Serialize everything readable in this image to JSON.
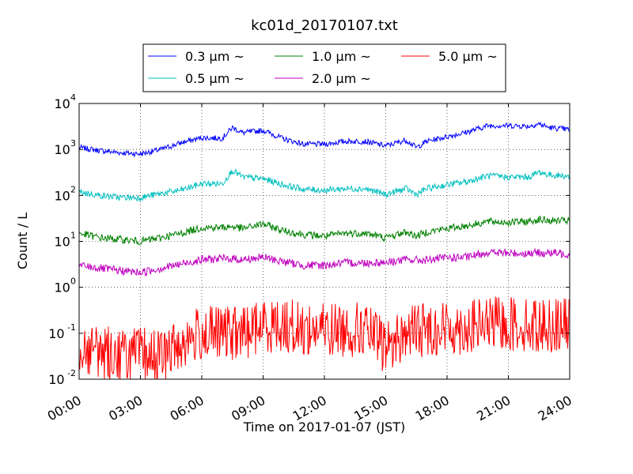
{
  "chart_data": {
    "type": "line",
    "title": "kc01d_20170107.txt",
    "xlabel": "Time on 2017-01-07 (JST)",
    "ylabel": "Count / L",
    "yscale": "log",
    "xlim": [
      "00:00",
      "24:00"
    ],
    "ylim": [
      0.01,
      10000
    ],
    "grid": true,
    "legend_position": "top-center",
    "x_ticks": [
      "00:00",
      "03:00",
      "06:00",
      "09:00",
      "12:00",
      "15:00",
      "18:00",
      "21:00",
      "24:00"
    ],
    "y_ticks": [
      {
        "base": "10",
        "exp": "-2",
        "value": 0.01
      },
      {
        "base": "10",
        "exp": "-1",
        "value": 0.1
      },
      {
        "base": "10",
        "exp": "0",
        "value": 1
      },
      {
        "base": "10",
        "exp": "1",
        "value": 10
      },
      {
        "base": "10",
        "exp": "2",
        "value": 100
      },
      {
        "base": "10",
        "exp": "3",
        "value": 1000
      },
      {
        "base": "10",
        "exp": "4",
        "value": 10000
      }
    ],
    "x": [
      "00:00",
      "01:00",
      "02:00",
      "03:00",
      "04:00",
      "05:00",
      "06:00",
      "07:00",
      "07:30",
      "08:00",
      "09:00",
      "10:00",
      "11:00",
      "12:00",
      "13:00",
      "14:00",
      "15:00",
      "16:00",
      "16:30",
      "17:00",
      "18:00",
      "19:00",
      "20:00",
      "21:00",
      "22:00",
      "22:30",
      "23:00",
      "24:00"
    ],
    "series": [
      {
        "name": "0.3 μm ~",
        "color": "#0000ff",
        "noise": 0.06,
        "values": [
          1100,
          950,
          850,
          800,
          1000,
          1400,
          1800,
          1750,
          3000,
          2300,
          2600,
          1700,
          1300,
          1300,
          1500,
          1500,
          1200,
          1600,
          1100,
          1500,
          1900,
          2400,
          3300,
          3300,
          3200,
          3600,
          3000,
          2700
        ]
      },
      {
        "name": "0.5 μm ~",
        "color": "#00bfbf",
        "noise": 0.07,
        "values": [
          120,
          100,
          90,
          90,
          110,
          130,
          180,
          180,
          350,
          250,
          230,
          170,
          135,
          130,
          140,
          140,
          105,
          140,
          105,
          140,
          170,
          200,
          270,
          250,
          250,
          320,
          280,
          260
        ]
      },
      {
        "name": "1.0 μm ~",
        "color": "#008000",
        "noise": 0.08,
        "values": [
          15,
          12,
          11,
          10,
          12,
          15,
          20,
          20,
          21,
          19,
          24,
          17,
          14,
          13,
          15,
          15,
          12,
          16,
          13,
          16,
          19,
          22,
          27,
          26,
          27,
          30,
          28,
          28
        ]
      },
      {
        "name": "2.0 μm ~",
        "color": "#bf00bf",
        "noise": 0.09,
        "values": [
          3,
          2.6,
          2.3,
          2.1,
          2.6,
          3.2,
          4,
          4.2,
          4.2,
          4,
          4.5,
          3.6,
          3,
          3,
          3.4,
          3.4,
          3.5,
          4,
          3.9,
          3.9,
          4.4,
          4.5,
          5.8,
          5.5,
          5.5,
          5.6,
          5.6,
          5.3
        ]
      },
      {
        "name": "5.0 μm ~",
        "color": "#ff0000",
        "noise": 0.6,
        "values": [
          0.05,
          0.04,
          0.035,
          0.035,
          0.03,
          0.06,
          0.1,
          0.1,
          0.1,
          0.1,
          0.15,
          0.15,
          0.12,
          0.12,
          0.12,
          0.12,
          0.05,
          0.1,
          0.12,
          0.12,
          0.13,
          0.13,
          0.16,
          0.16,
          0.15,
          0.15,
          0.15,
          0.15
        ]
      }
    ]
  }
}
